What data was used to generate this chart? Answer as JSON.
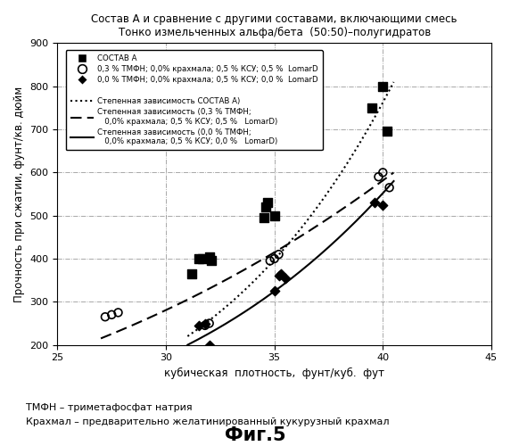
{
  "title_line1": "Состав А и сравнение с другими составами, включающими смесь",
  "title_line2": "Тонко измельченных альфа/бета  (50:50)–полугидратов",
  "xlabel": "кубическая  плотность,  фунт/куб.  фут",
  "ylabel": "Прочность при сжатии, фунт/кв. дюйм",
  "xlim": [
    25,
    45
  ],
  "ylim": [
    200,
    900
  ],
  "xticks": [
    25,
    30,
    35,
    40,
    45
  ],
  "yticks": [
    200,
    300,
    400,
    500,
    600,
    700,
    800,
    900
  ],
  "footnote1": "ТМФН – триметафосфат натрия",
  "footnote2": "Крахмал – предварительно желатинированный кукурузный крахмал",
  "fig_label": "Фиг.5",
  "scatter_A_x": [
    31.2,
    31.5,
    31.7,
    32.0,
    32.1,
    34.5,
    34.6,
    34.7,
    35.0,
    39.5,
    40.0,
    40.2
  ],
  "scatter_A_y": [
    365,
    400,
    400,
    405,
    395,
    495,
    520,
    530,
    500,
    750,
    800,
    695
  ],
  "scatter_open_x": [
    27.2,
    27.5,
    27.8,
    31.8,
    32.0,
    34.8,
    35.0,
    35.2,
    39.8,
    40.0,
    40.3
  ],
  "scatter_open_y": [
    265,
    270,
    275,
    245,
    250,
    395,
    400,
    410,
    590,
    600,
    565
  ],
  "scatter_diamond_x": [
    31.5,
    31.8,
    32.0,
    35.0,
    35.2,
    35.3,
    35.5,
    39.6,
    40.0
  ],
  "scatter_diamond_y": [
    245,
    248,
    200,
    325,
    360,
    365,
    355,
    530,
    525
  ],
  "legend_A": "СОСТАВ А",
  "legend_open": "0,3 % ТМФН; 0,0% крахмала; 0,5 % КСУ; 0,5 %  LomarD",
  "legend_diamond": "0,0 % ТМФН; 0,0% крахмала; 0,5 % КСУ; 0,0 %  LomarD",
  "legend_curve_A": "Степенная зависимость СОСТАВ А)",
  "legend_curve_dashed_1": "Степенная зависимость (0,3 % ТМФН;",
  "legend_curve_dashed_2": "   0,0% крахмала; 0,5 % КСУ; 0,5 %   LomarD)",
  "legend_curve_solid_1": "Степенная зависимость (0,0 % ТМФН;",
  "legend_curve_solid_2": "   0,0% крахмала; 0,5 % КСУ; 0,0 %   LomarD)",
  "curve_A_x0": 31.0,
  "curve_A_x1": 40.5,
  "curve_A_y0": 220,
  "curve_A_y1": 810,
  "curve_dashed_x0": 27.0,
  "curve_dashed_x1": 40.5,
  "curve_dashed_y0": 215,
  "curve_dashed_y1": 600,
  "curve_solid_x0": 31.0,
  "curve_solid_x1": 40.5,
  "curve_solid_y0": 200,
  "curve_solid_y1": 580
}
